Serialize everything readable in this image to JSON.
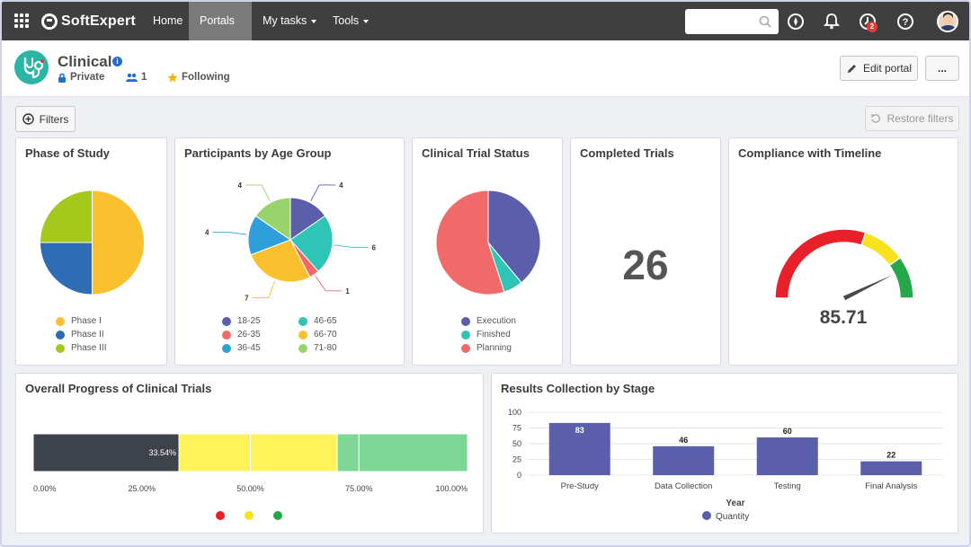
{
  "nav": {
    "brand": "SoftExpert",
    "items": [
      {
        "label": "Home",
        "has_caret": false,
        "active": false
      },
      {
        "label": "Portals",
        "has_caret": true,
        "active": true
      },
      {
        "label": "My tasks",
        "has_caret": true,
        "active": false
      },
      {
        "label": "Tools",
        "has_caret": true,
        "active": false
      }
    ],
    "search_placeholder": "",
    "notification_badge": "2"
  },
  "portal": {
    "title": "Clinical",
    "privacy": "Private",
    "members": "1",
    "following": "Following",
    "edit_label": "Edit portal",
    "more_label": "..."
  },
  "toolbar": {
    "filters_label": "Filters",
    "restore_label": "Restore filters"
  },
  "cards": {
    "phase": {
      "title": "Phase of Study"
    },
    "age": {
      "title": "Participants by Age Group"
    },
    "status": {
      "title": "Clinical Trial Status"
    },
    "completed": {
      "title": "Completed Trials",
      "value": "26"
    },
    "compliance": {
      "title": "Compliance with Timeline",
      "value": "85.71"
    },
    "progress": {
      "title": "Overall Progress of Clinical Trials"
    },
    "results": {
      "title": "Results Collection by Stage"
    }
  },
  "chart_data": [
    {
      "id": "phase",
      "type": "pie",
      "title": "Phase of Study",
      "labels": [
        "Phase I",
        "Phase II",
        "Phase III"
      ],
      "values": [
        2,
        1,
        1
      ],
      "colors": [
        "#fbc02d",
        "#2e6db4",
        "#a5c81c"
      ]
    },
    {
      "id": "age",
      "type": "pie",
      "title": "Participants by Age Group",
      "labels": [
        "18-25",
        "46-65",
        "26-35",
        "66-70",
        "36-45",
        "71-80"
      ],
      "values": [
        4,
        6,
        1,
        7,
        4,
        4
      ],
      "colors": [
        "#5b5fab",
        "#2ec4b6",
        "#f06a6a",
        "#fbc02d",
        "#2e9fd9",
        "#98d36b"
      ]
    },
    {
      "id": "status",
      "type": "pie",
      "title": "Clinical Trial Status",
      "labels": [
        "Execution",
        "Finished",
        "Planning"
      ],
      "values": [
        39,
        6,
        55
      ],
      "colors": [
        "#5b5fab",
        "#2ec4b6",
        "#f06a6a"
      ]
    },
    {
      "id": "compliance",
      "type": "gauge",
      "title": "Compliance with Timeline",
      "value": 85.71,
      "range": [
        0,
        100
      ],
      "bands": [
        {
          "from": 0,
          "to": 60,
          "color": "#e8202a"
        },
        {
          "from": 60,
          "to": 80,
          "color": "#f6e31d"
        },
        {
          "from": 80,
          "to": 100,
          "color": "#24a84a"
        }
      ]
    },
    {
      "id": "progress",
      "type": "bar",
      "orientation": "horizontal-stacked",
      "title": "Overall Progress of Clinical Trials",
      "segments": [
        {
          "value": 33.54,
          "color": "#3d424b",
          "label": "33.54%"
        },
        {
          "value": 16.46,
          "color": "#fff35c",
          "label": ""
        },
        {
          "value": 20.0,
          "color": "#fff35c",
          "label": ""
        },
        {
          "value": 5.0,
          "color": "#7cd696",
          "label": ""
        },
        {
          "value": 25.0,
          "color": "#7cd696",
          "label": ""
        }
      ],
      "ticks": [
        "0.00%",
        "25.00%",
        "50.00%",
        "75.00%",
        "100.00%"
      ],
      "legend_colors": [
        "#e8202a",
        "#f6e31d",
        "#24a84a"
      ]
    },
    {
      "id": "results",
      "type": "bar",
      "title": "Results Collection by Stage",
      "categories": [
        "Pre-Study",
        "Data Collection",
        "Testing",
        "Final Analysis"
      ],
      "series": [
        {
          "name": "Quantity",
          "values": [
            83,
            46,
            60,
            22
          ],
          "color": "#5b5fab"
        }
      ],
      "xlabel": "Year",
      "ylabel": "",
      "ylim": [
        0,
        100
      ],
      "yticks": [
        0,
        25,
        50,
        75,
        100
      ]
    }
  ]
}
